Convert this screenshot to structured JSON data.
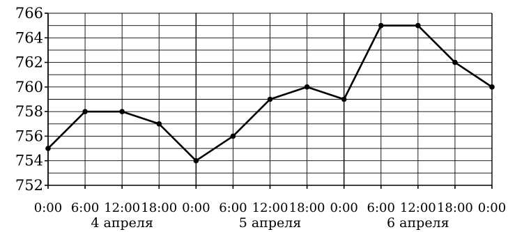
{
  "chart_data": {
    "type": "line",
    "x": [
      "0:00",
      "6:00",
      "12:00",
      "18:00",
      "0:00",
      "6:00",
      "12:00",
      "18:00",
      "0:00",
      "6:00",
      "12:00",
      "18:00",
      "0:00"
    ],
    "values": [
      755,
      758,
      758,
      757,
      754,
      756,
      759,
      760,
      759,
      765,
      765,
      762,
      760
    ],
    "day_labels": [
      "4 апреля",
      "5 апреля",
      "6 апреля"
    ],
    "y_ticks": [
      "752",
      "754",
      "756",
      "758",
      "760",
      "762",
      "764",
      "766"
    ],
    "ylim": [
      752,
      766
    ],
    "grid": true,
    "title": "",
    "xlabel": "",
    "ylabel": ""
  }
}
